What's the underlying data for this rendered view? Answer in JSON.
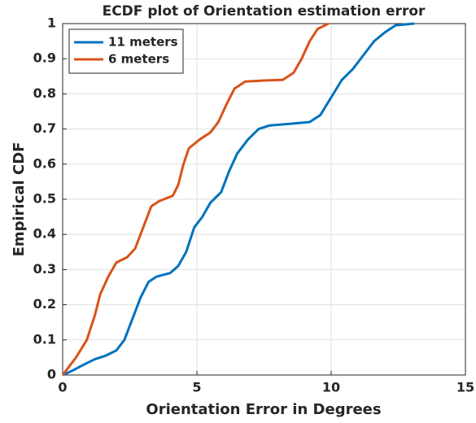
{
  "chart_data": {
    "type": "line",
    "title": "ECDF plot of Orientation estimation error",
    "xlabel": "Orientation Error in Degrees",
    "ylabel": "Empirical CDF",
    "xlim": [
      0,
      15
    ],
    "ylim": [
      0,
      1
    ],
    "xticks": [
      0,
      5,
      10,
      15
    ],
    "yticks": [
      0,
      0.1,
      0.2,
      0.3,
      0.4,
      0.5,
      0.6,
      0.7,
      0.8,
      0.9,
      1
    ],
    "grid": true,
    "legend": "upper left",
    "series": [
      {
        "name": "11 meters",
        "color": "#0072BD",
        "x": [
          0,
          0.3,
          0.8,
          1.2,
          1.6,
          2,
          2.3,
          2.6,
          2.9,
          3.2,
          3.5,
          4,
          4.3,
          4.6,
          4.9,
          5.2,
          5.5,
          5.9,
          6.2,
          6.5,
          6.9,
          7.3,
          7.7,
          8.5,
          9.2,
          9.6,
          10,
          10.4,
          10.8,
          11.2,
          11.6,
          12,
          12.4,
          13.1
        ],
        "values": [
          0,
          0.01,
          0.03,
          0.045,
          0.055,
          0.07,
          0.1,
          0.16,
          0.22,
          0.265,
          0.28,
          0.29,
          0.31,
          0.35,
          0.42,
          0.45,
          0.49,
          0.52,
          0.58,
          0.63,
          0.67,
          0.7,
          0.71,
          0.715,
          0.72,
          0.74,
          0.79,
          0.84,
          0.87,
          0.91,
          0.95,
          0.975,
          0.995,
          1
        ]
      },
      {
        "name": "6 meters",
        "color": "#D95319",
        "x": [
          0,
          0.2,
          0.5,
          0.9,
          1.2,
          1.4,
          1.7,
          2,
          2.4,
          2.7,
          3,
          3.3,
          3.6,
          4.1,
          4.3,
          4.5,
          4.7,
          5.1,
          5.5,
          5.8,
          6.1,
          6.4,
          6.8,
          7.5,
          8.2,
          8.6,
          8.9,
          9.2,
          9.5,
          9.9
        ],
        "values": [
          0,
          0.02,
          0.05,
          0.1,
          0.17,
          0.23,
          0.28,
          0.32,
          0.335,
          0.36,
          0.42,
          0.48,
          0.495,
          0.51,
          0.54,
          0.6,
          0.645,
          0.67,
          0.69,
          0.72,
          0.77,
          0.815,
          0.835,
          0.838,
          0.84,
          0.86,
          0.9,
          0.95,
          0.985,
          1
        ]
      }
    ]
  }
}
